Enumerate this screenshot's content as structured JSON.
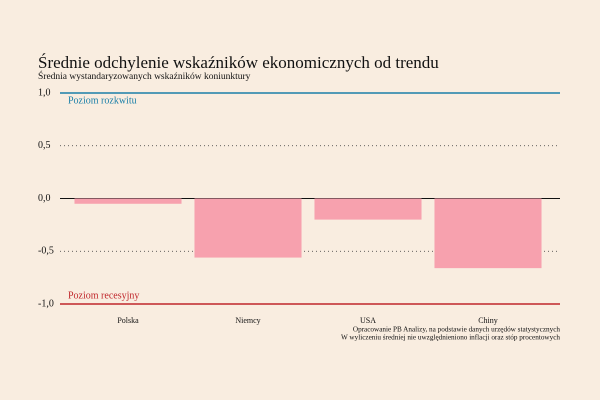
{
  "chart_data": {
    "type": "bar",
    "title": "Średnie odchylenie wskaźników ekonomicznych od trendu",
    "subtitle": "Średnia wystandaryzowanych wskaźników koniunktury",
    "categories": [
      "Polska",
      "Niemcy",
      "USA",
      "Chiny"
    ],
    "values": [
      -0.05,
      -0.56,
      -0.2,
      -0.66
    ],
    "color": "#f7a1ae",
    "ylim": [
      -1,
      1
    ],
    "yticks": [
      {
        "value": 1,
        "label": "1,0"
      },
      {
        "value": 0.5,
        "label": "0,5"
      },
      {
        "value": 0,
        "label": "0,0"
      },
      {
        "value": -0.5,
        "label": "-0,5"
      },
      {
        "value": -1,
        "label": "-1,0"
      }
    ],
    "grid": true,
    "reference_lines": [
      {
        "value": 1,
        "label": "Poziom rozkwitu",
        "color": "#1a7fa8"
      },
      {
        "value": -1,
        "label": "Poziom recesyjny",
        "color": "#c0262b"
      }
    ],
    "notes": [
      "Opracowanie PB Analizy, na podstawie danych urzędów statystycznych",
      "W wyliczeniu średniej nie uwzględnieniono inflacji oraz stóp procentowych"
    ]
  }
}
